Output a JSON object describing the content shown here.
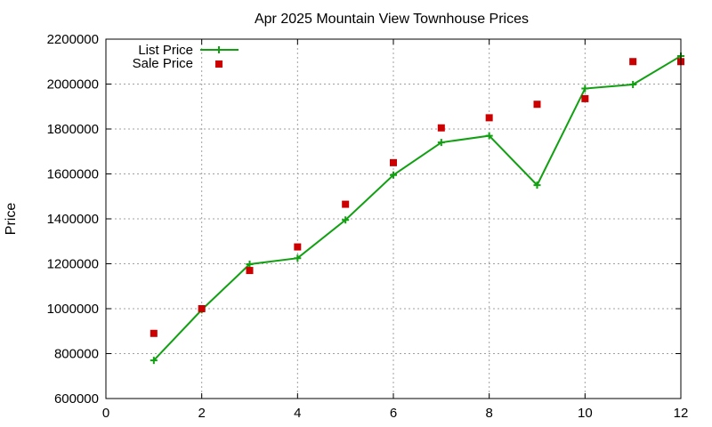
{
  "chart_data": {
    "type": "line",
    "title": "Apr 2025 Mountain View Townhouse Prices",
    "xlabel": "",
    "ylabel": "Price",
    "xlim": [
      0,
      12
    ],
    "ylim": [
      600000,
      2200000
    ],
    "xticks": [
      0,
      2,
      4,
      6,
      8,
      10,
      12
    ],
    "yticks": [
      600000,
      800000,
      1000000,
      1200000,
      1400000,
      1600000,
      1800000,
      2000000,
      2200000
    ],
    "grid": true,
    "legend_position": "top-left",
    "series": [
      {
        "name": "List Price",
        "style": "line-plus",
        "color": "#11a011",
        "x": [
          1,
          2,
          3,
          4,
          5,
          6,
          7,
          8,
          9,
          10,
          11,
          12
        ],
        "values": [
          770000,
          995000,
          1198000,
          1225000,
          1395000,
          1595000,
          1740000,
          1770000,
          1550000,
          1980000,
          1998000,
          2125000
        ]
      },
      {
        "name": "Sale Price",
        "style": "square-points",
        "color": "#cc0000",
        "x": [
          1,
          2,
          3,
          4,
          5,
          6,
          7,
          8,
          9,
          10,
          11,
          12
        ],
        "values": [
          890000,
          1000000,
          1170000,
          1275000,
          1465000,
          1650000,
          1805000,
          1850000,
          1910000,
          1935000,
          2100000,
          2100000
        ]
      }
    ]
  }
}
